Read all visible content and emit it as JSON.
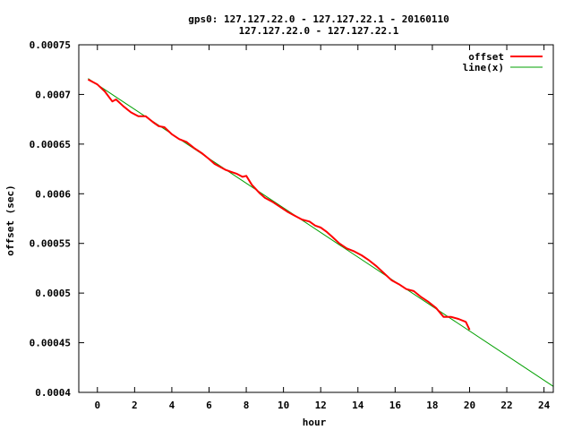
{
  "chart_data": {
    "type": "line",
    "title_line1": "gps0: 127.127.22.0 - 127.127.22.1 - 20160110",
    "title_line2": "127.127.22.0 - 127.127.22.1",
    "xlabel": "hour",
    "ylabel": "offset (sec)",
    "xlim": [
      -1,
      24.5
    ],
    "ylim": [
      0.0004,
      0.00075
    ],
    "xticks": [
      0,
      2,
      4,
      6,
      8,
      10,
      12,
      14,
      16,
      18,
      20,
      22,
      24
    ],
    "yticks": [
      0.0004,
      0.00045,
      0.0005,
      0.00055,
      0.0006,
      0.00065,
      0.0007,
      0.00075
    ],
    "ytick_labels": [
      "0.0004",
      "0.00045",
      "0.0005",
      "0.00055",
      "0.0006",
      "0.00065",
      "0.0007",
      "0.00075"
    ],
    "grid": false,
    "legend_position": "top-right",
    "series": [
      {
        "name": "offset",
        "color": "#ff0000",
        "x": [
          -0.5,
          0.0,
          0.4,
          0.8,
          1.0,
          1.4,
          1.8,
          2.2,
          2.6,
          3.0,
          3.3,
          3.6,
          4.0,
          4.4,
          4.8,
          5.2,
          5.6,
          6.0,
          6.3,
          6.6,
          6.9,
          7.2,
          7.5,
          7.8,
          8.0,
          8.3,
          8.7,
          9.0,
          9.4,
          9.8,
          10.2,
          10.6,
          11.0,
          11.4,
          11.7,
          12.0,
          12.3,
          12.6,
          13.0,
          13.4,
          13.8,
          14.2,
          14.6,
          15.0,
          15.4,
          15.8,
          16.2,
          16.6,
          17.0,
          17.4,
          17.8,
          18.2,
          18.6,
          19.0,
          19.4,
          19.8,
          20.0
        ],
        "y": [
          0.000715,
          0.00071,
          0.000703,
          0.000693,
          0.000695,
          0.000688,
          0.000682,
          0.000678,
          0.000678,
          0.000672,
          0.000668,
          0.000667,
          0.00066,
          0.000655,
          0.000652,
          0.000646,
          0.000641,
          0.000635,
          0.00063,
          0.000627,
          0.000624,
          0.000622,
          0.00062,
          0.000617,
          0.000618,
          0.000609,
          0.000601,
          0.000596,
          0.000592,
          0.000587,
          0.000582,
          0.000578,
          0.000574,
          0.000572,
          0.000568,
          0.000566,
          0.000562,
          0.000557,
          0.00055,
          0.000545,
          0.000542,
          0.000538,
          0.000533,
          0.000527,
          0.00052,
          0.000513,
          0.000509,
          0.000504,
          0.000502,
          0.000496,
          0.000491,
          0.000485,
          0.000476,
          0.000476,
          0.000474,
          0.000471,
          0.000463
        ]
      },
      {
        "name": "line(x)",
        "color": "#00a000",
        "x": [
          -0.5,
          24.5
        ],
        "y": [
          0.000716,
          0.000406
        ]
      }
    ]
  }
}
